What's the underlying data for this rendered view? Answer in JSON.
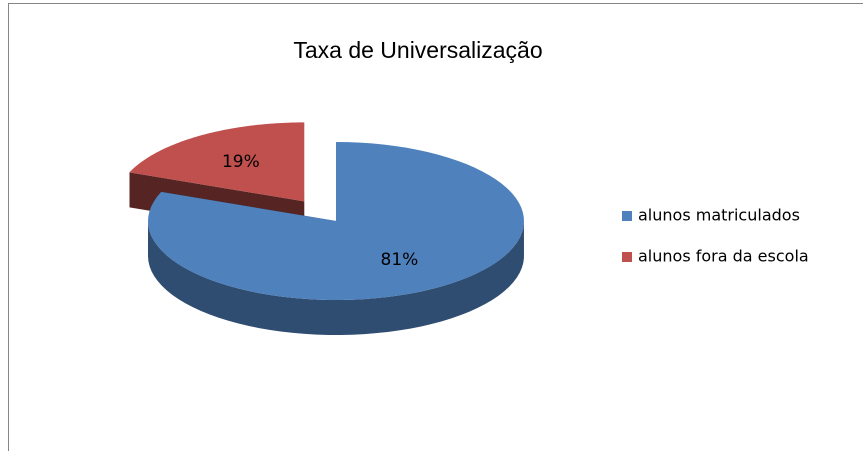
{
  "chart_data": {
    "type": "pie",
    "title": "Taxa de Universalização",
    "categories": [
      "alunos matriculados",
      "alunos fora da escola"
    ],
    "values": [
      81,
      19
    ],
    "value_labels": [
      "81%",
      "19%"
    ],
    "colors": [
      "#4f81bd",
      "#c0504d"
    ],
    "legend": "right"
  }
}
